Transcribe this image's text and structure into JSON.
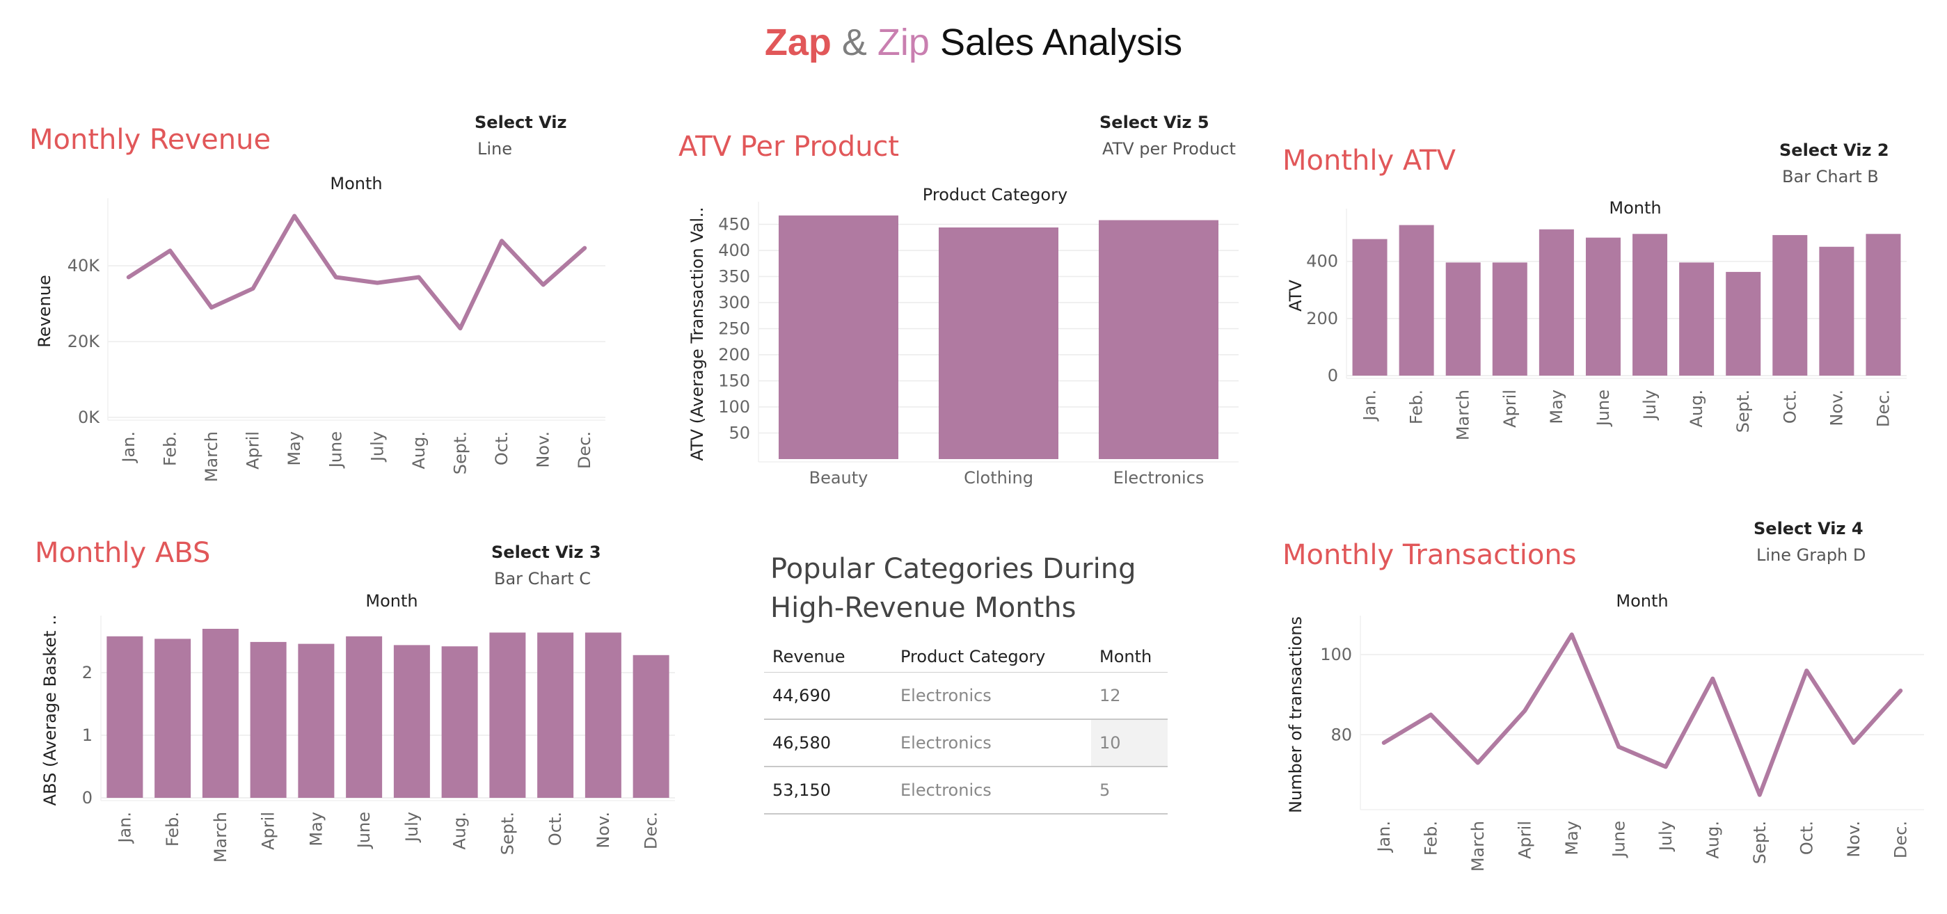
{
  "dashboard": {
    "title_parts": [
      "Zap",
      "&",
      "Zip",
      "Sales Analysis"
    ]
  },
  "colors": {
    "bar": "#b07aa1",
    "accent": "#e15759",
    "grid": "#ececec"
  },
  "panels": {
    "revenue": {
      "title": "Monthly Revenue",
      "select_label": "Select Viz",
      "select_value": "Line"
    },
    "atv_product": {
      "title": "ATV Per Product",
      "select_label": "Select Viz 5",
      "select_value": "ATV per Product"
    },
    "atv_month": {
      "title": "Monthly ATV",
      "select_label": "Select Viz 2",
      "select_value": "Bar Chart B"
    },
    "abs": {
      "title": "Monthly ABS",
      "select_label": "Select Viz 3",
      "select_value": "Bar Chart C"
    },
    "popular": {
      "title_line1": "Popular Categories During",
      "title_line2": "High-Revenue Months"
    },
    "transactions": {
      "title": "Monthly Transactions",
      "select_label": "Select Viz 4",
      "select_value": "Line Graph D"
    }
  },
  "popular_table": {
    "headers": [
      "Revenue",
      "Product Category",
      "Month"
    ],
    "rows": [
      [
        "44,690",
        "Electronics",
        "12"
      ],
      [
        "46,580",
        "Electronics",
        "10"
      ],
      [
        "53,150",
        "Electronics",
        "5"
      ]
    ]
  },
  "chart_data": [
    {
      "id": "revenue",
      "type": "line",
      "title": "Month",
      "xlabel": "",
      "ylabel": "Revenue",
      "categories": [
        "Jan.",
        "Feb.",
        "March",
        "April",
        "May",
        "June",
        "July",
        "Aug.",
        "Sept.",
        "Oct.",
        "Nov.",
        "Dec."
      ],
      "values": [
        37000,
        44000,
        29000,
        34000,
        53150,
        37000,
        35500,
        37000,
        23500,
        46580,
        35000,
        44690
      ],
      "ylim": [
        0,
        56000
      ],
      "yticks": [
        0,
        20000,
        40000
      ],
      "ytick_labels": [
        "0K",
        "20K",
        "40K"
      ],
      "grid": true
    },
    {
      "id": "atv_product",
      "type": "bar",
      "title": "Product Category",
      "xlabel": "",
      "ylabel": "ATV (Average Transaction Val..",
      "categories": [
        "Beauty",
        "Clothing",
        "Electronics"
      ],
      "values": [
        467,
        444,
        458
      ],
      "ylim": [
        0,
        480
      ],
      "yticks": [
        50,
        100,
        150,
        200,
        250,
        300,
        350,
        400,
        450
      ],
      "ytick_labels": [
        "50",
        "100",
        "150",
        "200",
        "250",
        "300",
        "350",
        "400",
        "450"
      ],
      "grid": true
    },
    {
      "id": "atv_month",
      "type": "bar",
      "title": "Month",
      "xlabel": "",
      "ylabel": "ATV",
      "categories": [
        "Jan.",
        "Feb.",
        "March",
        "April",
        "May",
        "June",
        "July",
        "Aug.",
        "Sept.",
        "Oct.",
        "Nov.",
        "Dec."
      ],
      "values": [
        478,
        527,
        396,
        396,
        512,
        483,
        496,
        396,
        363,
        492,
        451,
        496
      ],
      "ylim": [
        0,
        560
      ],
      "yticks": [
        0,
        200,
        400
      ],
      "ytick_labels": [
        "0",
        "200",
        "400"
      ],
      "grid": true
    },
    {
      "id": "abs",
      "type": "bar",
      "title": "Month",
      "xlabel": "",
      "ylabel": "ABS (Average Basket ..",
      "categories": [
        "Jan.",
        "Feb.",
        "March",
        "April",
        "May",
        "June",
        "July",
        "Aug.",
        "Sept.",
        "Oct.",
        "Nov.",
        "Dec."
      ],
      "values": [
        2.58,
        2.54,
        2.7,
        2.49,
        2.46,
        2.58,
        2.44,
        2.42,
        2.64,
        2.64,
        2.64,
        2.28
      ],
      "ylim": [
        0,
        2.8
      ],
      "yticks": [
        0,
        1,
        2
      ],
      "ytick_labels": [
        "0",
        "1",
        "2"
      ],
      "grid": true
    },
    {
      "id": "transactions",
      "type": "line",
      "title": "Month",
      "xlabel": "",
      "ylabel": "Number of transactions",
      "categories": [
        "Jan.",
        "Feb.",
        "March",
        "April",
        "May",
        "June",
        "July",
        "Aug.",
        "Sept.",
        "Oct.",
        "Nov.",
        "Dec."
      ],
      "values": [
        78,
        85,
        73,
        86,
        105,
        77,
        72,
        94,
        65,
        96,
        78,
        91
      ],
      "ylim": [
        62,
        108
      ],
      "yticks": [
        80,
        100
      ],
      "ytick_labels": [
        "80",
        "100"
      ],
      "grid": true
    }
  ]
}
